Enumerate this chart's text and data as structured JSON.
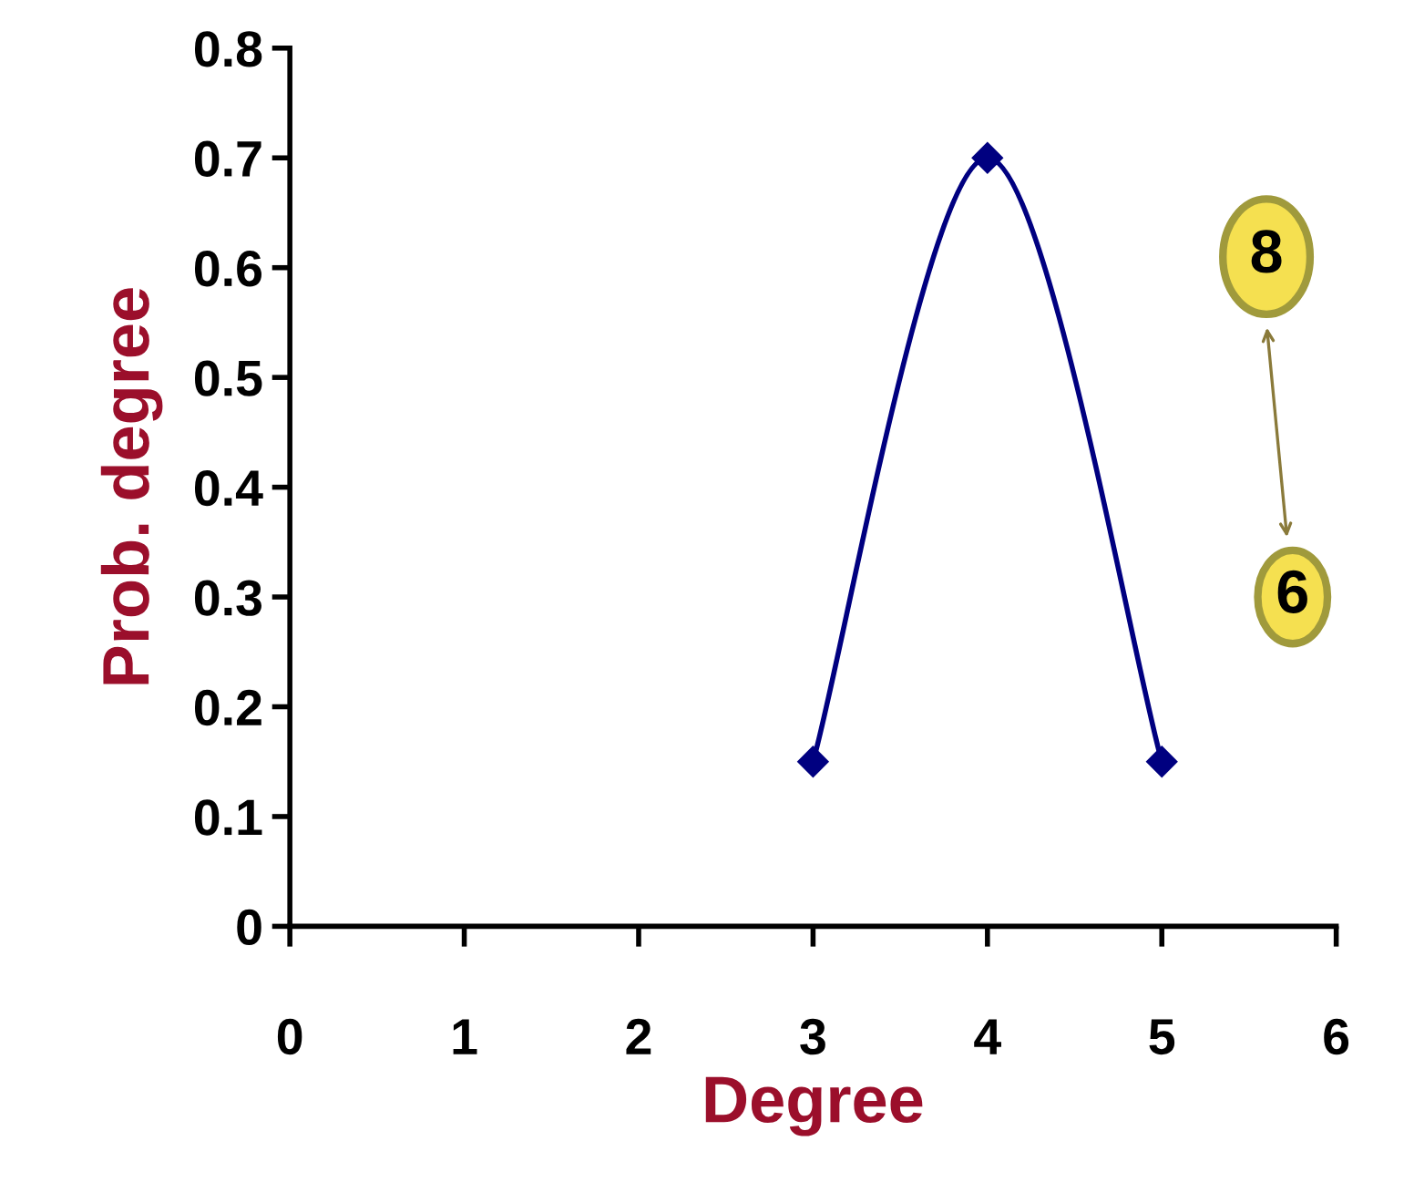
{
  "chart_data": {
    "type": "line",
    "xlabel": "Degree",
    "ylabel": "Prob. degree",
    "x": [
      3,
      4,
      5
    ],
    "series": [
      {
        "color": "#000080",
        "values": [
          0.15,
          0.7,
          0.15
        ]
      }
    ],
    "marker": "diamond",
    "line_style": "solid",
    "xlim": [
      0,
      6
    ],
    "xticks": [
      0,
      1,
      2,
      3,
      4,
      5,
      6
    ],
    "ylim": [
      0,
      0.8
    ],
    "yticks": [
      0,
      0.1,
      0.2,
      0.3,
      0.4,
      0.5,
      0.6,
      0.7,
      0.8
    ],
    "annotations": [
      "8",
      "6"
    ]
  }
}
